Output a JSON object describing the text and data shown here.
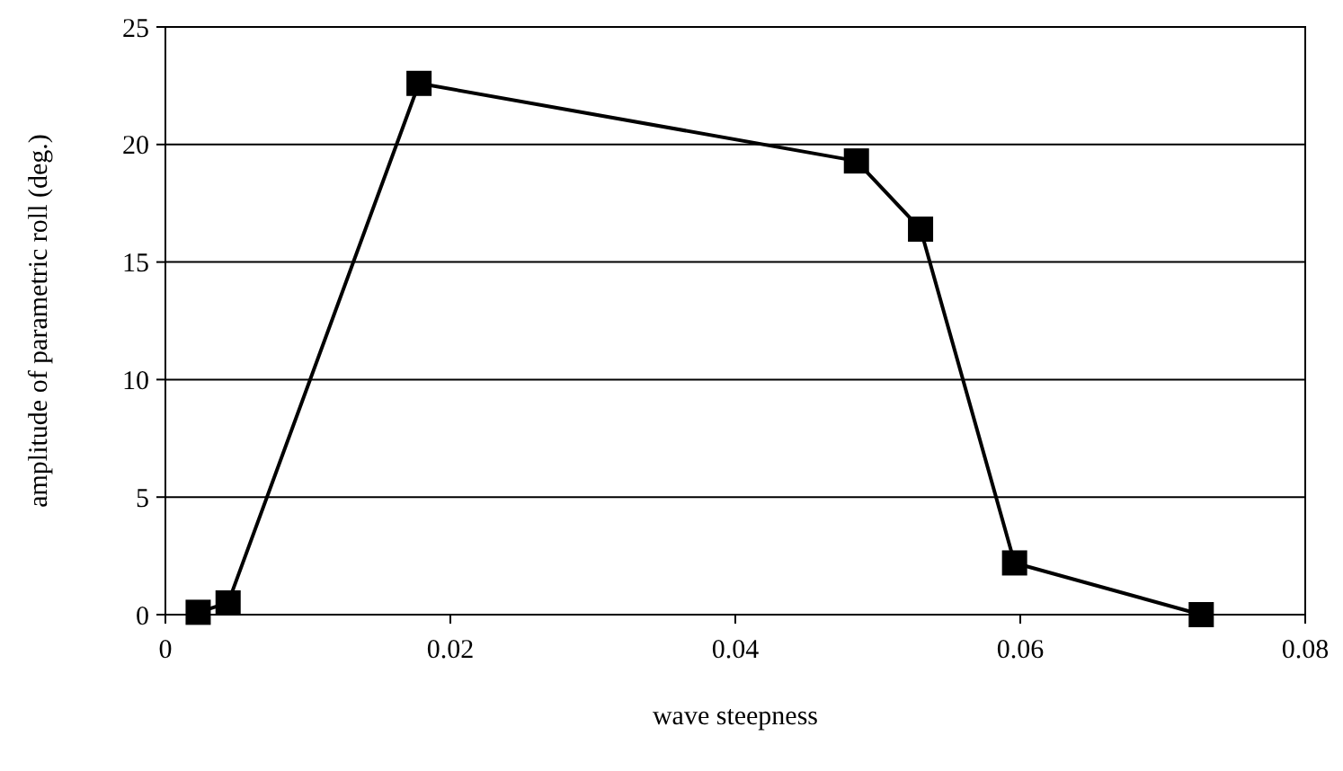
{
  "chart_data": {
    "type": "line",
    "xlabel": "wave steepness",
    "ylabel": "amplitude of parametric roll (deg.)",
    "x": [
      0.0023,
      0.0044,
      0.0178,
      0.0485,
      0.053,
      0.0596,
      0.0727
    ],
    "series": [
      {
        "color": "#000000",
        "values": [
          0.1,
          0.5,
          22.6,
          19.3,
          16.4,
          2.2,
          0
        ]
      }
    ],
    "xlim": [
      0,
      0.08
    ],
    "xticks": [
      {
        "value": 0,
        "label": "0"
      },
      {
        "value": 0.02,
        "label": "0.02"
      },
      {
        "value": 0.04,
        "label": "0.04"
      },
      {
        "value": 0.06,
        "label": "0.06"
      },
      {
        "value": 0.08,
        "label": "0.08"
      }
    ],
    "ylim": [
      0,
      25
    ],
    "yticks": [
      0,
      5,
      10,
      15,
      20,
      25
    ],
    "grid": "y",
    "marker": "square",
    "line_style": "solid"
  }
}
